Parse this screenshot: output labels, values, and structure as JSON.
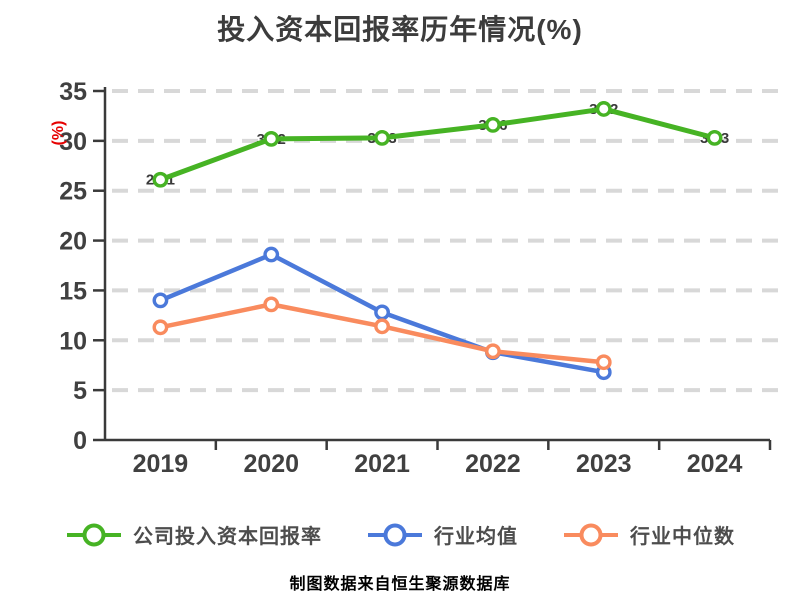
{
  "title": "投入资本回报率历年情况(%)",
  "footer": "制图数据来自恒生聚源数据库",
  "colors": {
    "title_text": "#3C3C3C",
    "axis": "#3A3A3A",
    "tick_label": "#404040",
    "gridline": "#D8D8D8",
    "ylabel_red": "#E60000",
    "legend_text": "#4D4D4D",
    "footer_text": "#9C7118",
    "series_company_green": "#46B324",
    "series_mean_blue": "#4B79DA",
    "series_median_orange": "#F98B5E",
    "marker_fill": "#FFFFFF"
  },
  "legend": [
    {
      "label": "公司投入资本回报率",
      "color": "#46B324"
    },
    {
      "label": "行业均值",
      "color": "#4B79DA"
    },
    {
      "label": "行业中位数",
      "color": "#F98B5E"
    }
  ],
  "chart_data": {
    "type": "line",
    "title": "投入资本回报率历年情况(%)",
    "xlabel": "",
    "ylabel": "(%)",
    "categories": [
      "2019",
      "2020",
      "2021",
      "2022",
      "2023",
      "2024"
    ],
    "series": [
      {
        "name": "公司投入资本回报率",
        "color": "#46B324",
        "values": [
          26.1,
          30.2,
          30.3,
          31.6,
          33.2,
          30.3
        ],
        "point_labels_hidden_under_line": true
      },
      {
        "name": "行业均值",
        "color": "#4B79DA",
        "values": [
          14.0,
          18.6,
          12.8,
          8.8,
          6.8,
          null
        ]
      },
      {
        "name": "行业中位数",
        "color": "#F98B5E",
        "values": [
          11.3,
          13.6,
          11.4,
          8.9,
          7.8,
          null
        ]
      }
    ],
    "ylim": [
      0,
      35
    ],
    "ytick_step": 5,
    "yticks": [
      0,
      5,
      10,
      15,
      20,
      25,
      30,
      35
    ],
    "grid": "horizontal-dashed",
    "legend_position": "bottom"
  }
}
